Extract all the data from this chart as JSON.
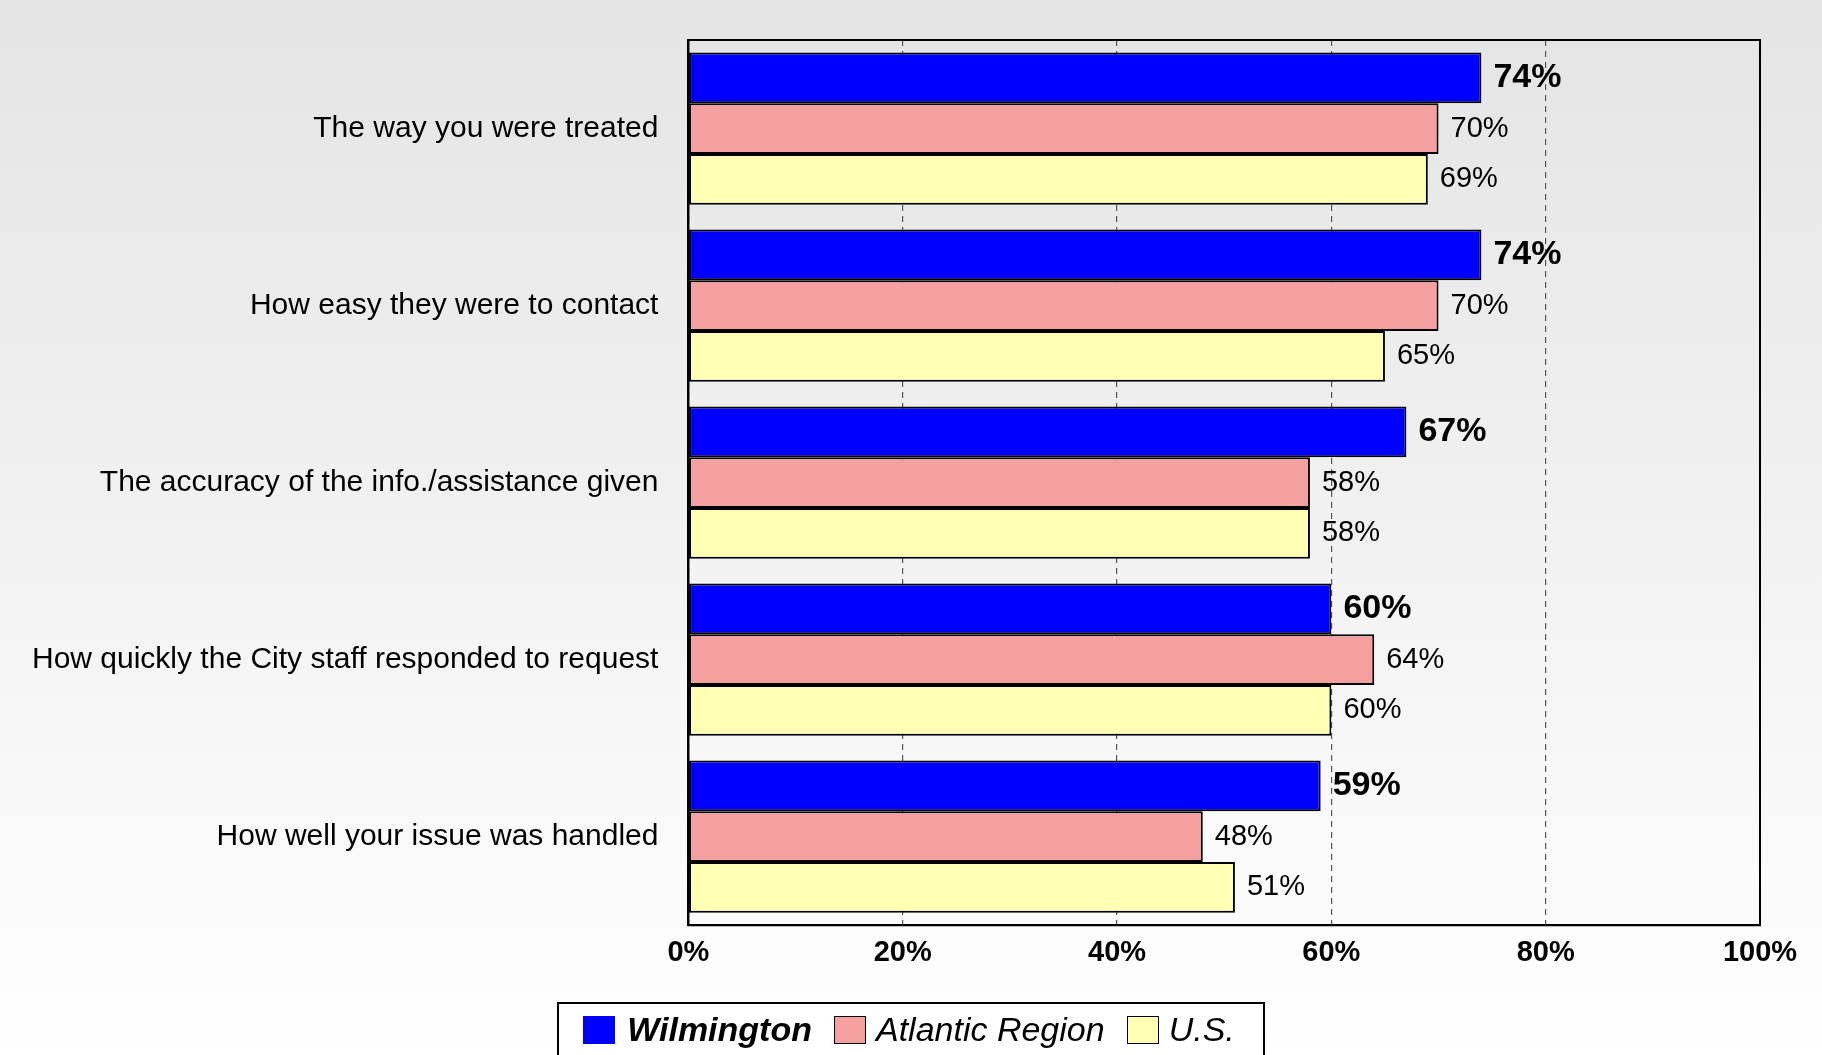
{
  "chart_data": {
    "type": "bar",
    "orientation": "horizontal",
    "categories": [
      "The way you were treated",
      "How easy they were to contact",
      "The accuracy of the info./assistance given",
      "How quickly the City staff responded to request",
      "How well your issue was handled"
    ],
    "series": [
      {
        "name": "Wilmington",
        "color": "#0000ff",
        "values": [
          74,
          74,
          67,
          60,
          59
        ],
        "value_labels": [
          "74%",
          "74%",
          "67%",
          "60%",
          "59%"
        ]
      },
      {
        "name": "Atlantic Region",
        "color": "#f4a0a0",
        "values": [
          70,
          70,
          58,
          64,
          48
        ],
        "value_labels": [
          "70%",
          "70%",
          "58%",
          "64%",
          "48%"
        ]
      },
      {
        "name": "U.S.",
        "color": "#ffffb4",
        "values": [
          69,
          65,
          58,
          60,
          51
        ],
        "value_labels": [
          "69%",
          "65%",
          "58%",
          "60%",
          "51%"
        ]
      }
    ],
    "xlim": [
      0,
      100
    ],
    "xticks": [
      {
        "value": 0,
        "label": "0%"
      },
      {
        "value": 20,
        "label": "20%"
      },
      {
        "value": 40,
        "label": "40%"
      },
      {
        "value": 60,
        "label": "60%"
      },
      {
        "value": 80,
        "label": "80%"
      },
      {
        "value": 100,
        "label": "100%"
      }
    ],
    "grid": "x",
    "legend": "bottom"
  }
}
